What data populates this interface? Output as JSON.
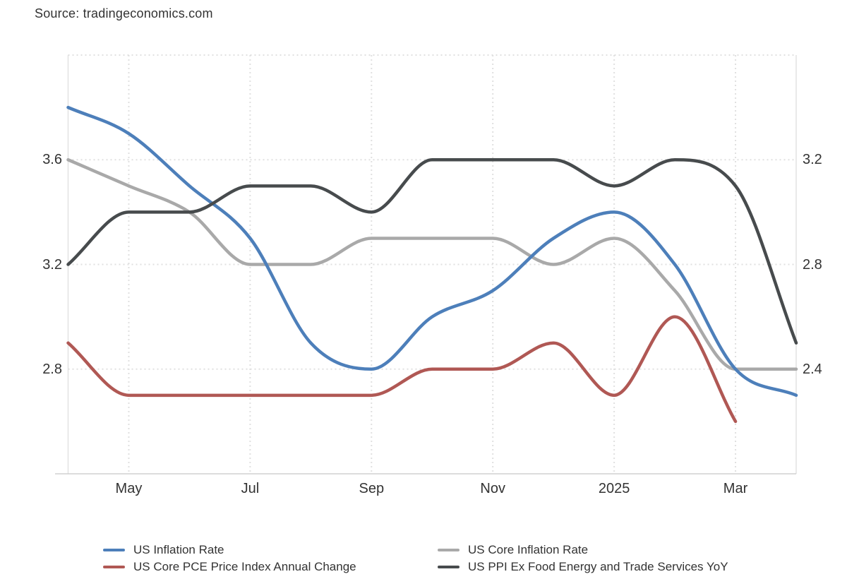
{
  "source_label": "Source: tradingeconomics.com",
  "chart_data": {
    "type": "line",
    "title": "",
    "x": [
      "Apr 2024",
      "May 2024",
      "Jun 2024",
      "Jul 2024",
      "Aug 2024",
      "Sep 2024",
      "Oct 2024",
      "Nov 2024",
      "Dec 2024",
      "Jan 2025",
      "Feb 2025",
      "Mar 2025",
      "Apr 2025"
    ],
    "x_tick_labels": [
      {
        "index": 1,
        "label": "May"
      },
      {
        "index": 3,
        "label": "Jul"
      },
      {
        "index": 5,
        "label": "Sep"
      },
      {
        "index": 7,
        "label": "Nov"
      },
      {
        "index": 9,
        "label": "2025"
      },
      {
        "index": 11,
        "label": "Mar"
      }
    ],
    "left_axis": {
      "range": [
        2.4,
        4.0
      ],
      "ticks": [
        {
          "value": 3.6,
          "label": "3.6"
        },
        {
          "value": 3.2,
          "label": "3.2"
        },
        {
          "value": 2.8,
          "label": "2.8"
        }
      ]
    },
    "right_axis": {
      "range": [
        2.0,
        3.6
      ],
      "ticks": [
        {
          "value": 3.2,
          "label": "3.2"
        },
        {
          "value": 2.8,
          "label": "2.8"
        },
        {
          "value": 2.4,
          "label": "2.4"
        }
      ]
    },
    "grid_left_values": [
      4.0,
      3.6,
      3.2,
      2.8
    ],
    "grid_on": true,
    "legend_position": "bottom",
    "series": [
      {
        "name": "US Inflation Rate",
        "axis": "right",
        "color": "#4D7FBA",
        "values": [
          3.4,
          3.3,
          3.1,
          2.9,
          2.5,
          2.4,
          2.6,
          2.7,
          2.9,
          3.0,
          2.8,
          2.4,
          2.3
        ]
      },
      {
        "name": "US Core Inflation Rate",
        "axis": "left",
        "color": "#A9A9A9",
        "values": [
          3.6,
          3.5,
          3.4,
          3.2,
          3.2,
          3.3,
          3.3,
          3.3,
          3.2,
          3.3,
          3.1,
          2.8,
          2.8
        ]
      },
      {
        "name": "US Core PCE Price Index Annual Change",
        "axis": "left",
        "color": "#B05854",
        "values": [
          2.9,
          2.7,
          2.7,
          2.7,
          2.7,
          2.7,
          2.8,
          2.8,
          2.9,
          2.7,
          3.0,
          2.6,
          null
        ]
      },
      {
        "name": "US PPI Ex Food Energy and Trade Services YoY",
        "axis": "right",
        "color": "#474B4D",
        "values": [
          2.8,
          3.0,
          3.0,
          3.1,
          3.1,
          3.0,
          3.2,
          3.2,
          3.2,
          3.1,
          3.2,
          3.1,
          2.5
        ]
      }
    ],
    "legend_row_major_series_indices": [
      0,
      1,
      2,
      3
    ],
    "draw_order_series_indices": [
      1,
      2,
      0,
      3
    ],
    "colors": {
      "grid": "#E0E0E0",
      "axis_line": "#D0D0D0",
      "plot_border": "#E2E2E2",
      "label_text": "#333333"
    }
  }
}
